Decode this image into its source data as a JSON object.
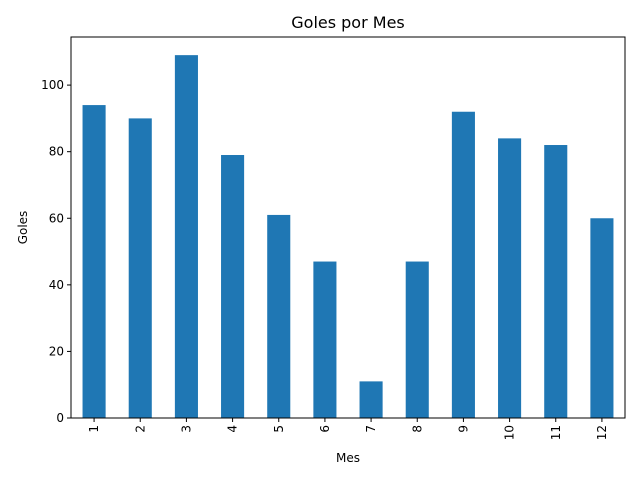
{
  "chart_data": {
    "type": "bar",
    "title": "Goles por Mes",
    "xlabel": "Mes",
    "ylabel": "Goles",
    "categories": [
      "1",
      "2",
      "3",
      "4",
      "5",
      "6",
      "7",
      "8",
      "9",
      "10",
      "11",
      "12"
    ],
    "values": [
      94,
      90,
      109,
      79,
      61,
      47,
      11,
      47,
      92,
      84,
      82,
      60
    ],
    "ylim": [
      0,
      114.45
    ],
    "yticks": [
      "0",
      "20",
      "40",
      "60",
      "80",
      "100"
    ],
    "bar_color": "#1f77b4",
    "grid": false,
    "legend": "none"
  }
}
